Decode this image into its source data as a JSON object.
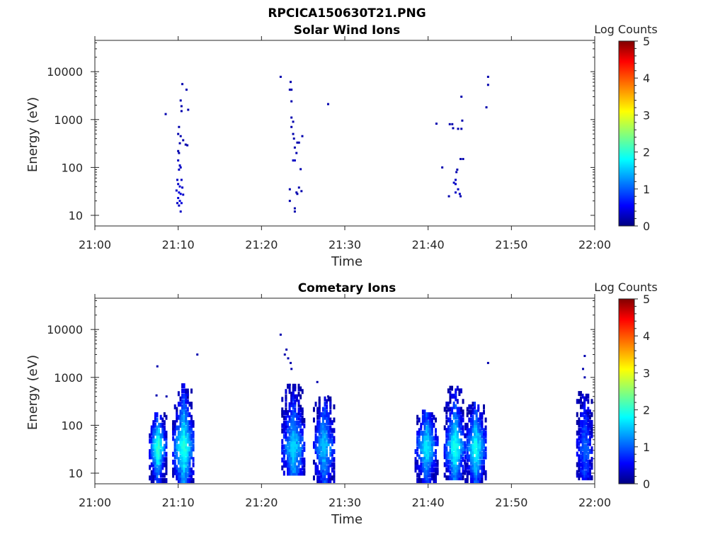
{
  "figure": {
    "filename_title": "RPCICA150630T21.PNG"
  },
  "colormap": {
    "name": "jet",
    "stops": [
      "#000080",
      "#0000ff",
      "#00ffff",
      "#ffff00",
      "#ff0000",
      "#800000"
    ]
  },
  "chart_data": [
    {
      "type": "heatmap",
      "title": "Solar Wind Ions",
      "xlabel": "Time",
      "ylabel": "Energy (eV)",
      "x_ticks": [
        "21:00",
        "21:10",
        "21:20",
        "21:30",
        "21:40",
        "21:50",
        "22:00"
      ],
      "x_range_minutes_after_2100": [
        0,
        60
      ],
      "y_scale": "log",
      "y_ticks": [
        "10",
        "100",
        "1000",
        "10000"
      ],
      "y_range": [
        6,
        45000
      ],
      "colorbar": {
        "label": "Log Counts",
        "ticks": [
          "0",
          "1",
          "2",
          "3",
          "4",
          "5"
        ],
        "range": [
          0,
          5
        ]
      },
      "points": [
        [
          8.5,
          1300,
          0.2
        ],
        [
          10.5,
          5500,
          0.2
        ],
        [
          11.0,
          4200,
          0.2
        ],
        [
          10.3,
          2500,
          0.2
        ],
        [
          10.4,
          1900,
          0.2
        ],
        [
          10.4,
          1500,
          0.2
        ],
        [
          11.2,
          1600,
          0.2
        ],
        [
          10.1,
          700,
          0.2
        ],
        [
          10.0,
          500,
          0.2
        ],
        [
          10.3,
          450,
          0.2
        ],
        [
          10.6,
          370,
          0.2
        ],
        [
          10.2,
          320,
          0.2
        ],
        [
          10.9,
          300,
          0.2
        ],
        [
          11.1,
          290,
          0.2
        ],
        [
          10.0,
          220,
          0.2
        ],
        [
          10.1,
          200,
          0.2
        ],
        [
          10.0,
          140,
          0.3
        ],
        [
          10.2,
          110,
          0.3
        ],
        [
          10.3,
          100,
          0.3
        ],
        [
          10.1,
          90,
          0.3
        ],
        [
          10.4,
          55,
          0.3
        ],
        [
          9.9,
          55,
          0.3
        ],
        [
          10.0,
          45,
          0.3
        ],
        [
          10.2,
          40,
          0.4
        ],
        [
          10.5,
          38,
          0.3
        ],
        [
          9.8,
          33,
          0.3
        ],
        [
          10.1,
          30,
          0.4
        ],
        [
          10.3,
          28,
          0.4
        ],
        [
          10.6,
          27,
          0.3
        ],
        [
          10.0,
          23,
          0.4
        ],
        [
          10.2,
          20,
          0.4
        ],
        [
          10.4,
          18,
          0.4
        ],
        [
          9.9,
          18,
          0.3
        ],
        [
          10.1,
          16,
          0.3
        ],
        [
          10.3,
          12,
          0.3
        ],
        [
          22.3,
          7800,
          0.2
        ],
        [
          23.5,
          6100,
          0.2
        ],
        [
          23.4,
          4200,
          0.2
        ],
        [
          23.6,
          4200,
          0.2
        ],
        [
          23.6,
          2400,
          0.2
        ],
        [
          28.0,
          2100,
          0.2
        ],
        [
          23.6,
          1100,
          0.2
        ],
        [
          23.8,
          900,
          0.2
        ],
        [
          23.6,
          700,
          0.2
        ],
        [
          23.8,
          500,
          0.2
        ],
        [
          24.9,
          450,
          0.2
        ],
        [
          23.9,
          400,
          0.2
        ],
        [
          24.3,
          330,
          0.2
        ],
        [
          24.5,
          330,
          0.2
        ],
        [
          24.0,
          260,
          0.2
        ],
        [
          24.2,
          200,
          0.2
        ],
        [
          23.8,
          140,
          0.3
        ],
        [
          24.0,
          140,
          0.3
        ],
        [
          24.7,
          92,
          0.2
        ],
        [
          23.4,
          35,
          0.2
        ],
        [
          24.5,
          38,
          0.2
        ],
        [
          24.8,
          32,
          0.2
        ],
        [
          24.2,
          30,
          0.2
        ],
        [
          24.3,
          28,
          0.2
        ],
        [
          23.4,
          20,
          0.2
        ],
        [
          24.0,
          14,
          0.2
        ],
        [
          24.0,
          12,
          0.2
        ],
        [
          41.0,
          820,
          0.2
        ],
        [
          42.6,
          800,
          0.2
        ],
        [
          42.9,
          800,
          0.2
        ],
        [
          44.1,
          950,
          0.2
        ],
        [
          44.0,
          3000,
          0.2
        ],
        [
          47.2,
          7800,
          0.2
        ],
        [
          47.2,
          5300,
          0.2
        ],
        [
          47.0,
          1800,
          0.2
        ],
        [
          43.0,
          660,
          0.2
        ],
        [
          43.6,
          640,
          0.2
        ],
        [
          44.0,
          640,
          0.2
        ],
        [
          43.9,
          150,
          0.2
        ],
        [
          44.2,
          150,
          0.2
        ],
        [
          41.7,
          100,
          0.2
        ],
        [
          43.5,
          90,
          0.2
        ],
        [
          43.4,
          80,
          0.2
        ],
        [
          43.3,
          55,
          0.3
        ],
        [
          43.1,
          48,
          0.3
        ],
        [
          43.3,
          45,
          0.3
        ],
        [
          43.6,
          35,
          0.3
        ],
        [
          43.3,
          30,
          0.3
        ],
        [
          43.8,
          28,
          0.3
        ],
        [
          42.5,
          25,
          0.2
        ],
        [
          43.9,
          25,
          0.2
        ]
      ]
    },
    {
      "type": "heatmap",
      "title": "Cometary Ions",
      "xlabel": "Time",
      "ylabel": "Energy (eV)",
      "x_ticks": [
        "21:00",
        "21:10",
        "21:20",
        "21:30",
        "21:40",
        "21:50",
        "22:00"
      ],
      "x_range_minutes_after_2100": [
        0,
        60
      ],
      "y_scale": "log",
      "y_ticks": [
        "10",
        "100",
        "1000",
        "10000"
      ],
      "y_range": [
        6,
        45000
      ],
      "colorbar": {
        "label": "Log Counts",
        "ticks": [
          "0",
          "1",
          "2",
          "3",
          "4",
          "5"
        ],
        "range": [
          0,
          5
        ]
      },
      "points": [
        [
          7.5,
          1700,
          0.2
        ],
        [
          7.4,
          420,
          0.2
        ],
        [
          8.6,
          400,
          0.2
        ],
        [
          12.3,
          3000,
          0.2
        ],
        [
          22.3,
          7800,
          0.2
        ],
        [
          23.0,
          3800,
          0.2
        ],
        [
          22.8,
          3000,
          0.2
        ],
        [
          23.2,
          2500,
          0.2
        ],
        [
          23.5,
          2000,
          0.2
        ],
        [
          23.6,
          1500,
          0.2
        ],
        [
          26.7,
          800,
          0.2
        ],
        [
          23.4,
          700,
          0.2
        ],
        [
          28.0,
          400,
          0.2
        ],
        [
          47.2,
          2000,
          0.2
        ],
        [
          58.8,
          2800,
          0.2
        ],
        [
          58.6,
          1500,
          0.2
        ],
        [
          58.8,
          1000,
          0.2
        ],
        [
          39.8,
          90,
          0.2
        ],
        [
          40.2,
          110,
          0.2
        ]
      ],
      "blobs": [
        {
          "t_range": [
            6.6,
            8.6
          ],
          "e_range": [
            7,
            180
          ],
          "peak_log_counts": 2.1
        },
        {
          "t_range": [
            9.4,
            12.0
          ],
          "e_range": [
            7,
            700
          ],
          "peak_log_counts": 2.0
        },
        {
          "t_range": [
            22.5,
            25.3
          ],
          "e_range": [
            10,
            700
          ],
          "peak_log_counts": 1.6
        },
        {
          "t_range": [
            26.3,
            28.8
          ],
          "e_range": [
            7,
            400
          ],
          "peak_log_counts": 1.5
        },
        {
          "t_range": [
            38.5,
            41.2
          ],
          "e_range": [
            7,
            200
          ],
          "peak_log_counts": 1.7
        },
        {
          "t_range": [
            42.0,
            44.5
          ],
          "e_range": [
            8,
            600
          ],
          "peak_log_counts": 1.9
        },
        {
          "t_range": [
            44.5,
            47.0
          ],
          "e_range": [
            7,
            300
          ],
          "peak_log_counts": 1.9
        },
        {
          "t_range": [
            57.9,
            59.8
          ],
          "e_range": [
            8,
            500
          ],
          "peak_log_counts": 1.0
        }
      ]
    }
  ]
}
